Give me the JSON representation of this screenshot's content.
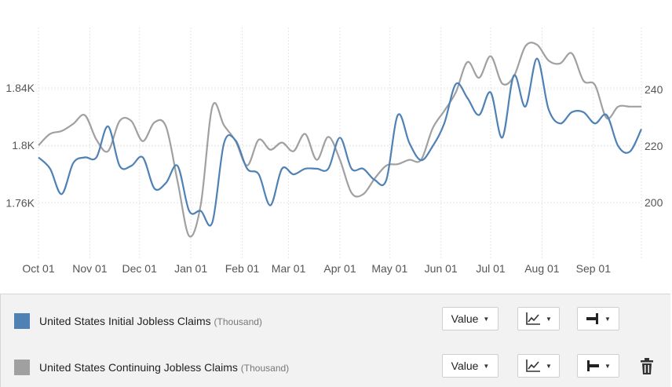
{
  "chart_data": {
    "type": "line",
    "x_ticks": [
      "Oct 01",
      "Nov 01",
      "Dec 01",
      "Jan 01",
      "Feb 01",
      "Mar 01",
      "Apr 01",
      "May 01",
      "Jun 01",
      "Jul 01",
      "Aug 01",
      "Sep 01"
    ],
    "left_axis": {
      "ticks": [
        "1.76K",
        "1.8K",
        "1.84K"
      ],
      "tick_values": [
        1760,
        1800,
        1840
      ],
      "range": [
        1721,
        1882
      ]
    },
    "right_axis": {
      "ticks": [
        "200",
        "220",
        "240"
      ],
      "tick_values": [
        200,
        220,
        240
      ],
      "range": [
        180,
        262
      ]
    },
    "grid": true,
    "series": [
      {
        "name": "United States Initial Jobless Claims",
        "unit": "(Thousand)",
        "axis": "right",
        "color": "#4f81b5",
        "x": [
          "Oct 01",
          "Oct 08",
          "Oct 15",
          "Oct 22",
          "Oct 29",
          "Nov 05",
          "Nov 12",
          "Nov 19",
          "Nov 26",
          "Dec 03",
          "Dec 10",
          "Dec 17",
          "Dec 24",
          "Dec 31",
          "Jan 07",
          "Jan 14",
          "Jan 21",
          "Jan 28",
          "Feb 04",
          "Feb 11",
          "Feb 18",
          "Feb 25",
          "Mar 04",
          "Mar 11",
          "Mar 18",
          "Mar 25",
          "Apr 01",
          "Apr 08",
          "Apr 15",
          "Apr 22",
          "Apr 29",
          "May 06",
          "May 13",
          "May 20",
          "May 27",
          "Jun 03",
          "Jun 10",
          "Jun 17",
          "Jun 24",
          "Jul 01",
          "Jul 08",
          "Jul 15",
          "Jul 22",
          "Jul 29",
          "Aug 05",
          "Aug 12",
          "Aug 19",
          "Aug 26",
          "Sep 02",
          "Sep 09",
          "Sep 16",
          "Sep 23",
          "Sep 30"
        ],
        "values": [
          216,
          212,
          203,
          214,
          216,
          216,
          227,
          213,
          213,
          216,
          205,
          207,
          213,
          197,
          197,
          193,
          221,
          222,
          212,
          210,
          199,
          212,
          210,
          212,
          212,
          212,
          223,
          212,
          212,
          208,
          208,
          231,
          221,
          215,
          220,
          228,
          242,
          237,
          231,
          239,
          223,
          245,
          234,
          251,
          233,
          228,
          232,
          232,
          228,
          231,
          220,
          218,
          226
        ]
      },
      {
        "name": "United States Continuing Jobless Claims",
        "unit": "(Thousand)",
        "axis": "left",
        "color": "#a0a0a0",
        "x": [
          "Oct 01",
          "Oct 08",
          "Oct 15",
          "Oct 22",
          "Oct 29",
          "Nov 05",
          "Nov 12",
          "Nov 19",
          "Nov 26",
          "Dec 03",
          "Dec 10",
          "Dec 17",
          "Dec 24",
          "Dec 31",
          "Jan 07",
          "Jan 14",
          "Jan 21",
          "Jan 28",
          "Feb 04",
          "Feb 11",
          "Feb 18",
          "Feb 25",
          "Mar 04",
          "Mar 11",
          "Mar 18",
          "Mar 25",
          "Apr 01",
          "Apr 08",
          "Apr 15",
          "Apr 22",
          "Apr 29",
          "May 06",
          "May 13",
          "May 20",
          "May 27",
          "Jun 03",
          "Jun 10",
          "Jun 17",
          "Jun 24",
          "Jul 01",
          "Jul 08",
          "Jul 15",
          "Jul 22",
          "Jul 29",
          "Aug 05",
          "Aug 12",
          "Aug 19",
          "Aug 26",
          "Sep 02",
          "Sep 09",
          "Sep 16",
          "Sep 23",
          "Sep 30"
        ],
        "values": [
          1800,
          1808,
          1810,
          1815,
          1821,
          1804,
          1796,
          1817,
          1817,
          1803,
          1816,
          1813,
          1775,
          1737,
          1759,
          1827,
          1814,
          1803,
          1786,
          1804,
          1797,
          1802,
          1796,
          1808,
          1790,
          1806,
          1790,
          1767,
          1766,
          1777,
          1786,
          1787,
          1790,
          1790,
          1812,
          1824,
          1837,
          1858,
          1847,
          1862,
          1843,
          1848,
          1869,
          1870,
          1859,
          1857,
          1864,
          1845,
          1842,
          1819,
          1827,
          1827,
          1827
        ]
      }
    ]
  },
  "legend": {
    "rows": [
      {
        "color": "#4f81b5",
        "label": "United States Initial Jobless Claims",
        "unit": "(Thousand)",
        "value_button": "Value",
        "line_type_icon": "line-chart-icon",
        "axis_side_icon": "axis-right-icon",
        "has_delete": false
      },
      {
        "color": "#a0a0a0",
        "label": "United States Continuing Jobless Claims",
        "unit": "(Thousand)",
        "value_button": "Value",
        "line_type_icon": "line-chart-icon",
        "axis_side_icon": "axis-left-icon",
        "has_delete": true,
        "delete_icon": "trash-icon"
      }
    ]
  }
}
